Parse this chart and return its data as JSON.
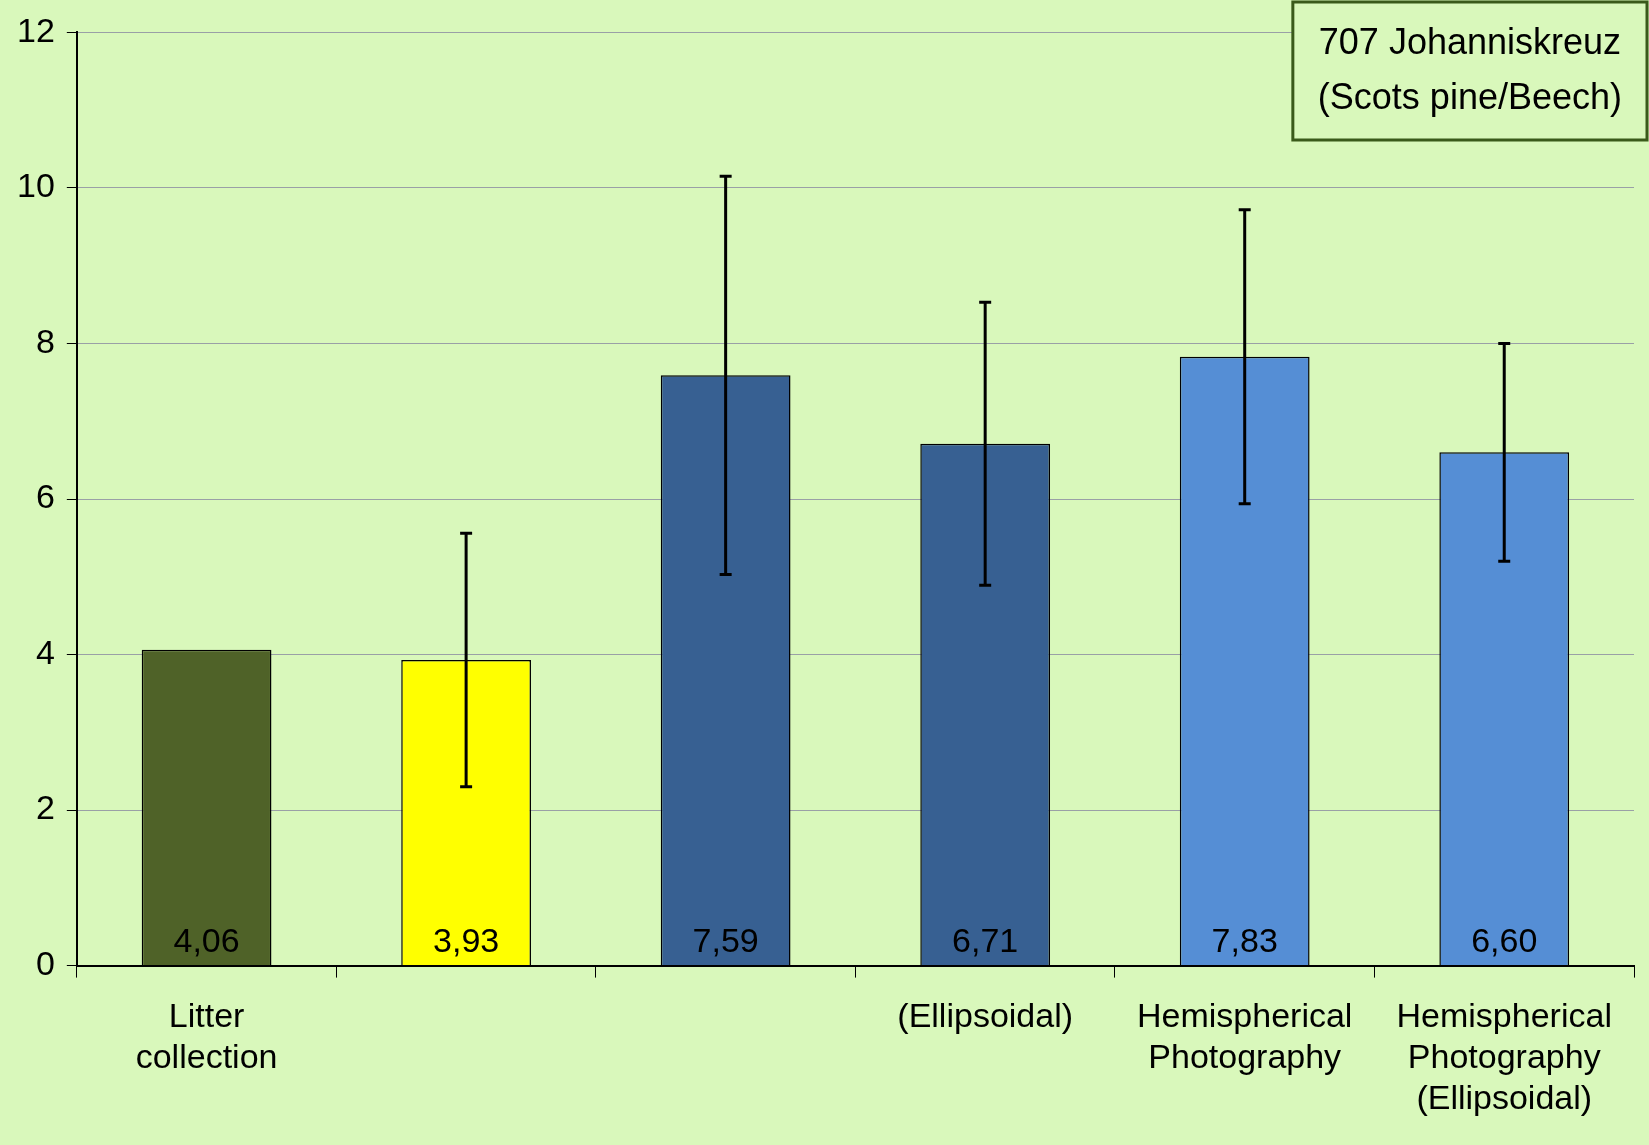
{
  "chart_data": {
    "type": "bar",
    "categories": [
      "Litter collection",
      null,
      null,
      "(Ellipsoidal)",
      "Hemispherical Photography",
      "Hemispherical Photography (Ellipsoidal)"
    ],
    "values": [
      4.06,
      3.93,
      7.59,
      6.71,
      7.83,
      6.6
    ],
    "value_labels": [
      "4,06",
      "3,93",
      "7,59",
      "6,71",
      "7,83",
      "6,60"
    ],
    "colors": [
      "#4f6228",
      "#ffff00",
      "#376092",
      "#376092",
      "#558ed5",
      "#558ed5"
    ],
    "errors": [
      null,
      1.63,
      2.56,
      1.82,
      1.89,
      1.4
    ],
    "ylim": [
      0,
      12
    ],
    "yticks": [
      0,
      2,
      4,
      6,
      8,
      10,
      12
    ],
    "grid": "y",
    "annotations": [
      "707 Johanniskreuz (Scots pine/Beech)"
    ]
  }
}
